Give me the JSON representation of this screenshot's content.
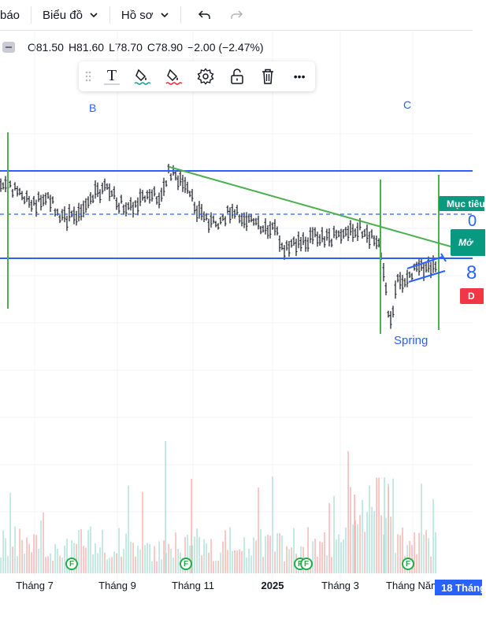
{
  "toolbar": {
    "alerts_label": "báo",
    "chart_label": "Biểu đồ",
    "profile_label": "Hồ sơ",
    "undo_icon": "undo-icon",
    "redo_icon": "redo-icon"
  },
  "ohlc": {
    "open": "O81.50",
    "high": "H81.60",
    "low": "L78.70",
    "close": "C78.90",
    "change": "−2.00 (−2.47%)"
  },
  "drawing_toolbar": {
    "icons": [
      "grip-icon",
      "text-icon",
      "line-color-icon",
      "fill-color-icon",
      "settings-icon",
      "unlock-icon",
      "delete-icon",
      "more-icon"
    ],
    "text_glyph": "T",
    "more_glyph": "•••"
  },
  "annotations": {
    "wave_b": "B",
    "wave_c": "C",
    "spring": "Spring"
  },
  "price_tags": {
    "target": "Mục tiêu",
    "open_pos": "Mở",
    "stop": "D",
    "value_frag_1": "0",
    "value_frag_2": "8"
  },
  "xaxis": {
    "labels": [
      "Tháng 7",
      "Tháng 9",
      "Tháng 11",
      "2025",
      "Tháng 3",
      "Tháng Năm"
    ],
    "current_date": "18 Tháng"
  },
  "events": {
    "f_marker": "F"
  },
  "colors": {
    "line_blue": "#2962ff",
    "line_green": "#4caf50",
    "tag_green": "#089981",
    "tag_red": "#f23645",
    "volume_red": "#f7a9a7",
    "volume_green": "#a5dfd3"
  }
}
